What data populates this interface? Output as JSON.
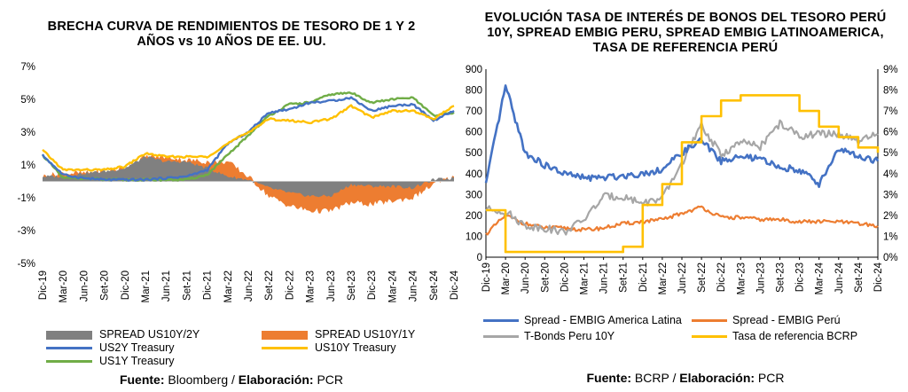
{
  "chart_data": [
    {
      "type": "area",
      "title": "BRECHA CURVA DE RENDIMIENTOS DE TESORO DE 1 Y 2 AÑOS vs 10 AÑOS DE EE. UU.",
      "ylim": [
        -5,
        7
      ],
      "y_ticks": [
        "7%",
        "5%",
        "3%",
        "1%",
        "-1%",
        "-3%",
        "-5%"
      ],
      "y_tick_values": [
        7,
        5,
        3,
        1,
        -1,
        -3,
        -5
      ],
      "x_ticks": [
        "Dic-19",
        "Mar-20",
        "Jun-20",
        "Set-20",
        "Dic-20",
        "Mar-21",
        "Jun-21",
        "Set-21",
        "Dic-21",
        "Mar-22",
        "Jun-22",
        "Set-22",
        "Dic-22",
        "Mar-23",
        "Jun-23",
        "Set-23",
        "Dic-23",
        "Mar-24",
        "Jun-24",
        "Set-24",
        "Dic-24"
      ],
      "x": [
        0,
        1,
        2,
        3,
        4,
        5,
        6,
        7,
        8,
        9,
        10,
        11,
        12,
        13,
        14,
        15,
        16,
        17,
        18,
        19,
        20
      ],
      "series": [
        {
          "name": "SPREAD US10Y/2Y",
          "kind": "area",
          "color": "#808080",
          "values": [
            0.3,
            0.3,
            0.5,
            0.6,
            0.8,
            1.5,
            1.2,
            1.2,
            0.8,
            0.3,
            0.1,
            -0.4,
            -0.7,
            -0.9,
            -0.9,
            -0.2,
            -0.3,
            -0.3,
            -0.4,
            0.1,
            0.2
          ]
        },
        {
          "name": "SPREAD US10Y/1Y",
          "kind": "area",
          "color": "#ed7d31",
          "values": [
            0.3,
            0.5,
            0.5,
            0.6,
            0.8,
            1.5,
            1.5,
            1.3,
            1.2,
            1.2,
            0.3,
            -0.9,
            -1.5,
            -1.8,
            -1.8,
            -1.3,
            -1.4,
            -1.2,
            -1.0,
            -0.2,
            0.3
          ]
        },
        {
          "name": "US2Y Treasury",
          "kind": "line",
          "color": "#4472c4",
          "values": [
            1.6,
            0.4,
            0.2,
            0.1,
            0.1,
            0.1,
            0.2,
            0.3,
            0.7,
            2.3,
            3.0,
            4.2,
            4.4,
            4.8,
            4.9,
            5.1,
            4.3,
            4.6,
            4.7,
            3.7,
            4.3
          ]
        },
        {
          "name": "US10Y Treasury",
          "kind": "line",
          "color": "#ffc000",
          "values": [
            1.9,
            0.7,
            0.7,
            0.7,
            0.9,
            1.7,
            1.5,
            1.5,
            1.5,
            2.3,
            3.0,
            3.8,
            3.7,
            3.6,
            3.8,
            4.6,
            3.9,
            4.3,
            4.3,
            3.8,
            4.6
          ]
        },
        {
          "name": "US1Y Treasury",
          "kind": "line",
          "color": "#70ad47",
          "values": [
            1.6,
            0.2,
            0.2,
            0.1,
            0.1,
            0.1,
            0.1,
            0.1,
            0.4,
            1.6,
            2.8,
            4.0,
            4.7,
            4.8,
            5.3,
            5.4,
            4.8,
            5.0,
            5.1,
            4.0,
            4.2
          ]
        }
      ],
      "legend_items": [
        "SPREAD US10Y/2Y",
        "SPREAD US10Y/1Y",
        "US2Y Treasury",
        "US10Y Treasury",
        "US1Y Treasury"
      ]
    },
    {
      "type": "line",
      "title": "EVOLUCIÓN TASA DE INTERÉS DE BONOS DEL TESORO PERÚ 10Y, SPREAD EMBIG PERU, SPREAD EMBIG LATINOAMERICA, TASA DE REFERENCIA PERÚ",
      "ylim": [
        0,
        900
      ],
      "y2lim": [
        0,
        9
      ],
      "y_ticks": [
        "900",
        "800",
        "700",
        "600",
        "500",
        "400",
        "300",
        "200",
        "100",
        "0"
      ],
      "y2_ticks": [
        "9%",
        "8%",
        "7%",
        "6%",
        "5%",
        "4%",
        "3%",
        "2%",
        "1%",
        "0%"
      ],
      "x_ticks": [
        "Dic-19",
        "Mar-20",
        "Jun-20",
        "Set-20",
        "Dic-20",
        "Mar-21",
        "Jun-21",
        "Set-21",
        "Dic-21",
        "Mar-22",
        "Jun-22",
        "Set-22",
        "Dic-22",
        "Mar-23",
        "Jun-23",
        "Set-23",
        "Dic-23",
        "Mar-24",
        "Jun-24",
        "Set-24",
        "Dic-24"
      ],
      "x": [
        0,
        1,
        2,
        3,
        4,
        5,
        6,
        7,
        8,
        9,
        10,
        11,
        12,
        13,
        14,
        15,
        16,
        17,
        18,
        19,
        20
      ],
      "series": [
        {
          "name": "Spread - EMBIG America Latina",
          "axis": "left",
          "color": "#4472c4",
          "values": [
            350,
            820,
            500,
            440,
            400,
            380,
            380,
            390,
            400,
            420,
            500,
            560,
            460,
            480,
            470,
            430,
            420,
            350,
            520,
            480,
            460
          ]
        },
        {
          "name": "Spread - EMBIG Perú",
          "axis": "left",
          "color": "#ed7d31",
          "values": [
            110,
            200,
            160,
            140,
            140,
            130,
            140,
            160,
            170,
            180,
            210,
            240,
            190,
            190,
            180,
            180,
            170,
            170,
            170,
            160,
            150
          ]
        },
        {
          "name": "T-Bonds Peru 10Y",
          "axis": "right",
          "color": "#a6a6a6",
          "values": [
            2.3,
            2.2,
            1.5,
            1.4,
            1.2,
            1.8,
            2.9,
            2.9,
            2.6,
            2.8,
            4.5,
            6.3,
            4.9,
            5.5,
            5.3,
            6.4,
            5.8,
            5.9,
            5.9,
            5.5,
            5.9
          ]
        },
        {
          "name": "Tasa de referencia BCRP",
          "axis": "right",
          "color": "#ffc000",
          "values": [
            2.25,
            0.25,
            0.25,
            0.25,
            0.25,
            0.25,
            0.25,
            0.5,
            2.5,
            3.5,
            5.5,
            6.75,
            7.5,
            7.75,
            7.75,
            7.75,
            7.0,
            6.25,
            5.75,
            5.25,
            5.0
          ]
        }
      ],
      "legend_items": [
        "Spread - EMBIG America Latina",
        "Spread - EMBIG Perú",
        "T-Bonds Peru 10Y",
        "Tasa de referencia BCRP"
      ]
    }
  ],
  "left": {
    "title": "BRECHA CURVA DE RENDIMIENTOS DE TESORO DE 1 Y 2 AÑOS vs 10 AÑOS DE EE. UU.",
    "source_label": "Fuente:",
    "source_value": " Bloomberg / ",
    "elab_label": "Elaboración:",
    "elab_value": " PCR"
  },
  "right": {
    "title": "EVOLUCIÓN TASA DE INTERÉS DE BONOS DEL TESORO PERÚ 10Y, SPREAD EMBIG PERU, SPREAD EMBIG LATINOAMERICA, TASA DE REFERENCIA PERÚ",
    "source_label": "Fuente:",
    "source_value": " BCRP / ",
    "elab_label": "Elaboración:",
    "elab_value": " PCR"
  }
}
